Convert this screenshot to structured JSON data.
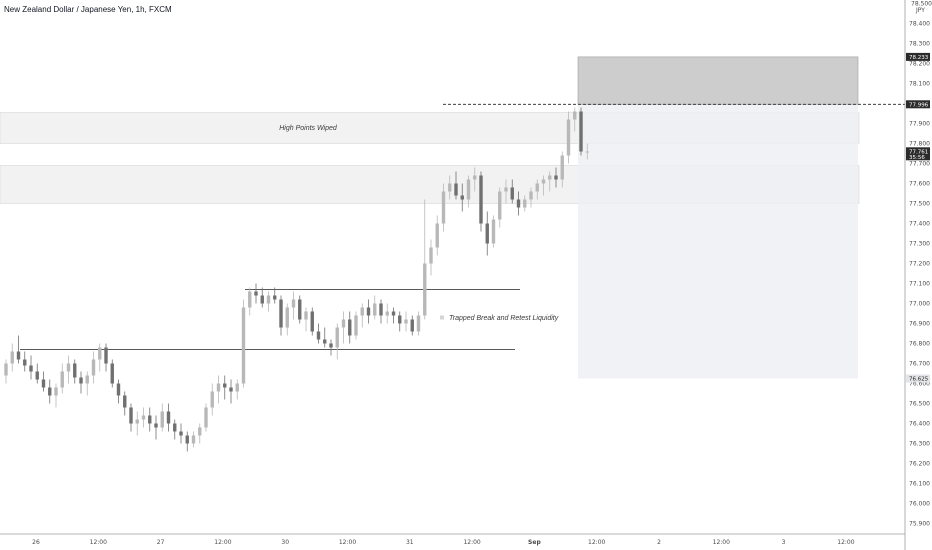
{
  "header": {
    "title": "New Zealand Dollar / Japanese Yen, 1h, FXCM"
  },
  "price_axis": {
    "currency": "JPY",
    "top_label": "78.500",
    "ticks": [
      "78.400",
      "78.300",
      "78.200",
      "78.100",
      "78.000",
      "77.900",
      "77.800",
      "77.700",
      "77.600",
      "77.500",
      "77.400",
      "77.300",
      "77.200",
      "77.100",
      "77.000",
      "76.900",
      "76.800",
      "76.700",
      "76.600",
      "76.500",
      "76.400",
      "76.300",
      "76.200",
      "76.100",
      "76.000",
      "75.900"
    ],
    "tags": [
      {
        "value": "78.233",
        "style": "dark"
      },
      {
        "value": "77.996",
        "style": "dark"
      },
      {
        "value": "77.761",
        "style": "dark",
        "sub": "35:56"
      },
      {
        "value": "76.625",
        "style": "light"
      }
    ]
  },
  "time_axis": {
    "labels": [
      "26",
      "12:00",
      "27",
      "12:00",
      "30",
      "12:00",
      "31",
      "12:00",
      "Sep",
      "12:00",
      "2",
      "12:00",
      "3",
      "12:00"
    ]
  },
  "annotations": {
    "zone_label": "High Points Wiped",
    "liquidity_label": "Trapped Break and Retest Liquidity"
  },
  "colors": {
    "candle_up": "#b8b8b8",
    "candle_down": "#707070",
    "zone_fill": "#f2f2f2",
    "stop_fill": "#c8c8c8",
    "target_fill": "#eef0f3",
    "tag_dark": "#2b2b2b",
    "tag_light": "#e2e4e8"
  },
  "chart_data": {
    "type": "candlestick",
    "symbol": "NZDJPY",
    "timeframe": "1h",
    "ylim": [
      75.86,
      78.5
    ],
    "candles": [
      [
        76.64,
        76.72,
        76.6,
        76.7
      ],
      [
        76.7,
        76.8,
        76.66,
        76.76
      ],
      [
        76.76,
        76.84,
        76.7,
        76.72
      ],
      [
        76.72,
        76.76,
        76.66,
        76.69
      ],
      [
        76.69,
        76.74,
        76.62,
        76.66
      ],
      [
        76.66,
        76.7,
        76.6,
        76.62
      ],
      [
        76.62,
        76.66,
        76.56,
        76.58
      ],
      [
        76.58,
        76.62,
        76.5,
        76.54
      ],
      [
        76.54,
        76.6,
        76.48,
        76.58
      ],
      [
        76.58,
        76.7,
        76.55,
        76.66
      ],
      [
        76.66,
        76.74,
        76.6,
        76.7
      ],
      [
        76.7,
        76.72,
        76.6,
        76.63
      ],
      [
        76.63,
        76.66,
        76.55,
        76.6
      ],
      [
        76.6,
        76.66,
        76.54,
        76.64
      ],
      [
        76.64,
        76.76,
        76.6,
        76.72
      ],
      [
        76.72,
        76.8,
        76.66,
        76.78
      ],
      [
        76.78,
        76.8,
        76.66,
        76.7
      ],
      [
        76.7,
        76.72,
        76.58,
        76.6
      ],
      [
        76.6,
        76.62,
        76.5,
        76.54
      ],
      [
        76.54,
        76.56,
        76.44,
        76.48
      ],
      [
        76.48,
        76.5,
        76.36,
        76.4
      ],
      [
        76.4,
        76.46,
        76.34,
        76.42
      ],
      [
        76.42,
        76.48,
        76.38,
        76.44
      ],
      [
        76.44,
        76.48,
        76.36,
        76.4
      ],
      [
        76.4,
        76.44,
        76.32,
        76.38
      ],
      [
        76.38,
        76.5,
        76.36,
        76.46
      ],
      [
        76.46,
        76.5,
        76.36,
        76.4
      ],
      [
        76.4,
        76.42,
        76.32,
        76.36
      ],
      [
        76.36,
        76.4,
        76.3,
        76.34
      ],
      [
        76.34,
        76.36,
        76.26,
        76.3
      ],
      [
        76.3,
        76.36,
        76.28,
        76.34
      ],
      [
        76.34,
        76.4,
        76.3,
        76.38
      ],
      [
        76.38,
        76.5,
        76.36,
        76.48
      ],
      [
        76.48,
        76.6,
        76.44,
        76.56
      ],
      [
        76.56,
        76.64,
        76.5,
        76.6
      ],
      [
        76.6,
        76.64,
        76.52,
        76.58
      ],
      [
        76.58,
        76.62,
        76.5,
        76.56
      ],
      [
        76.56,
        76.62,
        76.52,
        76.6
      ],
      [
        76.6,
        77.02,
        76.58,
        76.98
      ],
      [
        76.98,
        77.08,
        76.94,
        77.06
      ],
      [
        77.06,
        77.1,
        77.0,
        77.04
      ],
      [
        77.04,
        77.08,
        76.98,
        77.0
      ],
      [
        77.0,
        77.06,
        76.96,
        77.04
      ],
      [
        77.04,
        77.08,
        77.0,
        77.02
      ],
      [
        77.02,
        77.04,
        76.84,
        76.88
      ],
      [
        76.88,
        77.0,
        76.84,
        76.98
      ],
      [
        76.98,
        77.06,
        76.92,
        77.02
      ],
      [
        77.02,
        77.04,
        76.9,
        76.92
      ],
      [
        76.92,
        76.98,
        76.86,
        76.96
      ],
      [
        76.96,
        76.98,
        76.84,
        76.86
      ],
      [
        76.86,
        76.9,
        76.8,
        76.82
      ],
      [
        76.82,
        76.88,
        76.78,
        76.8
      ],
      [
        76.8,
        76.82,
        76.74,
        76.78
      ],
      [
        76.78,
        76.9,
        76.72,
        76.88
      ],
      [
        76.88,
        76.96,
        76.8,
        76.92
      ],
      [
        76.92,
        76.96,
        76.8,
        76.84
      ],
      [
        76.84,
        76.96,
        76.82,
        76.94
      ],
      [
        76.94,
        77.0,
        76.88,
        76.98
      ],
      [
        76.98,
        77.02,
        76.9,
        76.94
      ],
      [
        76.94,
        77.04,
        76.92,
        77.0
      ],
      [
        77.0,
        77.02,
        76.9,
        76.94
      ],
      [
        76.94,
        77.0,
        76.9,
        76.96
      ],
      [
        76.96,
        76.98,
        76.9,
        76.94
      ],
      [
        76.94,
        76.96,
        76.86,
        76.9
      ],
      [
        76.9,
        76.96,
        76.86,
        76.92
      ],
      [
        76.92,
        76.94,
        76.84,
        76.86
      ],
      [
        76.86,
        76.96,
        76.84,
        76.94
      ],
      [
        76.94,
        77.52,
        76.92,
        77.2
      ],
      [
        77.2,
        77.32,
        77.14,
        77.28
      ],
      [
        77.28,
        77.44,
        77.24,
        77.4
      ],
      [
        77.4,
        77.6,
        77.36,
        77.56
      ],
      [
        77.56,
        77.64,
        77.52,
        77.6
      ],
      [
        77.6,
        77.66,
        77.52,
        77.54
      ],
      [
        77.54,
        77.6,
        77.46,
        77.52
      ],
      [
        77.52,
        77.64,
        77.48,
        77.62
      ],
      [
        77.62,
        77.68,
        77.56,
        77.64
      ],
      [
        77.64,
        77.66,
        77.36,
        77.4
      ],
      [
        77.4,
        77.46,
        77.24,
        77.3
      ],
      [
        77.3,
        77.44,
        77.28,
        77.42
      ],
      [
        77.42,
        77.58,
        77.38,
        77.56
      ],
      [
        77.56,
        77.62,
        77.5,
        77.58
      ],
      [
        77.58,
        77.62,
        77.5,
        77.52
      ],
      [
        77.52,
        77.56,
        77.44,
        77.48
      ],
      [
        77.48,
        77.54,
        77.46,
        77.52
      ],
      [
        77.52,
        77.58,
        77.48,
        77.56
      ],
      [
        77.56,
        77.62,
        77.52,
        77.6
      ],
      [
        77.6,
        77.64,
        77.54,
        77.62
      ],
      [
        77.62,
        77.66,
        77.56,
        77.64
      ],
      [
        77.64,
        77.68,
        77.58,
        77.62
      ],
      [
        77.62,
        77.76,
        77.58,
        77.74
      ],
      [
        77.74,
        77.96,
        77.7,
        77.92
      ],
      [
        77.92,
        77.98,
        77.86,
        77.96
      ],
      [
        77.96,
        77.98,
        77.74,
        77.76
      ],
      [
        77.76,
        77.8,
        77.72,
        77.76
      ]
    ],
    "levels": [
      {
        "name": "resistance_line",
        "value": 77.07
      },
      {
        "name": "support_line",
        "value": 76.77
      },
      {
        "name": "entry_level",
        "value": 77.996
      }
    ],
    "zones": [
      {
        "name": "high_points_wiped",
        "from": 77.8,
        "to": 77.955
      },
      {
        "name": "lower_zone",
        "from": 77.5,
        "to": 77.69
      }
    ],
    "position": {
      "stop": 78.233,
      "entry": 77.996,
      "target": 76.625
    }
  }
}
